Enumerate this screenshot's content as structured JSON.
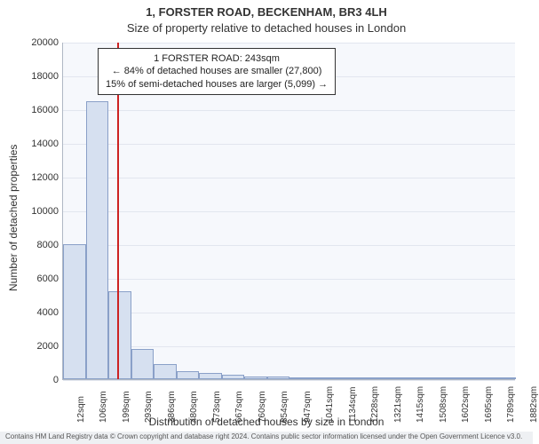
{
  "title": "1, FORSTER ROAD, BECKENHAM, BR3 4LH",
  "subtitle": "Size of property relative to detached houses in London",
  "chart": {
    "type": "histogram",
    "background_color": "#f6f8fc",
    "grid_color": "#e2e6ef",
    "axis_color": "#b0b8c4",
    "bar_fill": "#d6e0f0",
    "bar_stroke": "#8aa0c8",
    "marker_color": "#cc2222",
    "title_fontsize": 13,
    "label_fontsize": 12,
    "tick_fontsize": 11,
    "x_tick_fontsize": 10,
    "ylim": [
      0,
      20000
    ],
    "ytick_step": 2000,
    "y_ticks": [
      0,
      2000,
      4000,
      6000,
      8000,
      10000,
      12000,
      14000,
      16000,
      18000,
      20000
    ],
    "x_labels": [
      "12sqm",
      "106sqm",
      "199sqm",
      "293sqm",
      "386sqm",
      "480sqm",
      "573sqm",
      "667sqm",
      "760sqm",
      "854sqm",
      "947sqm",
      "1041sqm",
      "1134sqm",
      "1228sqm",
      "1321sqm",
      "1415sqm",
      "1508sqm",
      "1602sqm",
      "1695sqm",
      "1789sqm",
      "1882sqm"
    ],
    "values": [
      8000,
      16500,
      5200,
      1800,
      900,
      500,
      350,
      250,
      180,
      140,
      110,
      90,
      70,
      55,
      45,
      35,
      28,
      22,
      18,
      14
    ],
    "marker_value_sqm": 243,
    "xlim_sqm": [
      12,
      1929
    ],
    "ylabel": "Number of detached properties",
    "xlabel": "Distribution of detached houses by size in London",
    "bar_width_ratio": 1.0
  },
  "annotation": {
    "line1": "1 FORSTER ROAD: 243sqm",
    "line2": "← 84% of detached houses are smaller (27,800)",
    "line3": "15% of semi-detached houses are larger (5,099) →",
    "border_color": "#333333",
    "background": "#ffffff",
    "fontsize": 11
  },
  "footnote": "Contains HM Land Registry data © Crown copyright and database right 2024. Contains public sector information licensed under the Open Government Licence v3.0."
}
